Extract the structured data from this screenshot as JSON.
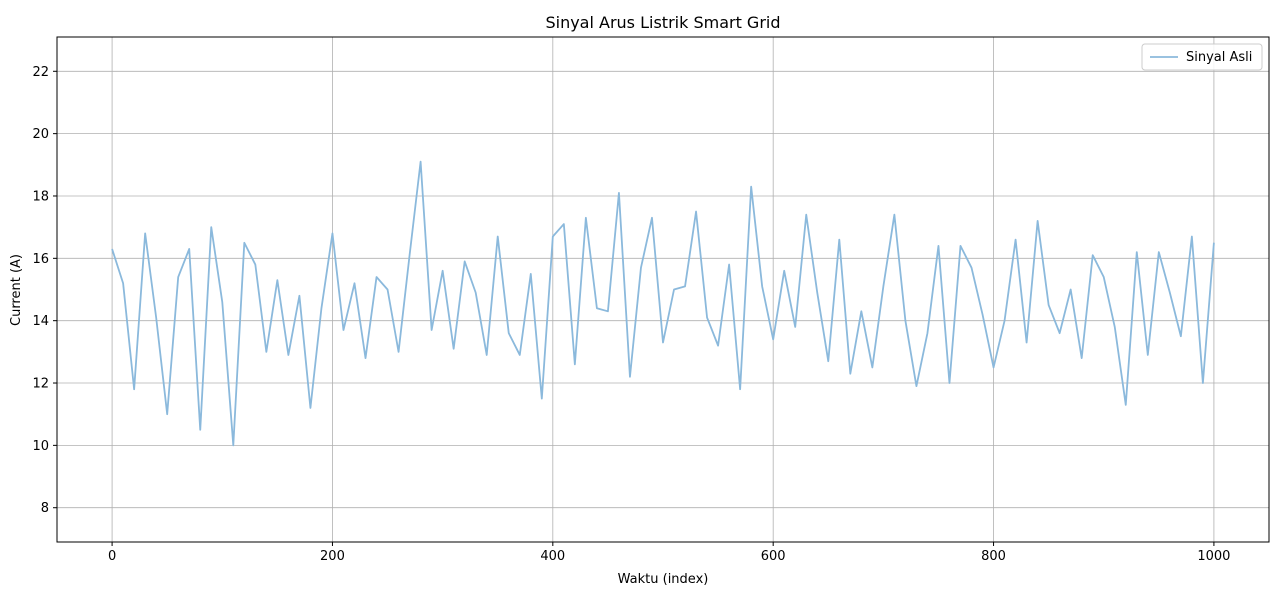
{
  "chart_data": {
    "type": "line",
    "title": "Sinyal Arus Listrik Smart Grid",
    "xlabel": "Waktu (index)",
    "ylabel": "Current (A)",
    "xlim": [
      -50,
      1050
    ],
    "ylim": [
      6.9,
      23.1
    ],
    "xticks": [
      0,
      200,
      400,
      600,
      800,
      1000
    ],
    "yticks": [
      8,
      10,
      12,
      14,
      16,
      18,
      20,
      22
    ],
    "grid": true,
    "legend": "top-right",
    "colors": {
      "series": "#8bb9dc",
      "axis": "#000000",
      "grid": "#b0b0b0"
    },
    "series": [
      {
        "name": "Sinyal Asli",
        "x_start": 0,
        "x_step": 10,
        "values": [
          16.3,
          15.2,
          11.8,
          16.8,
          14.1,
          11.0,
          15.4,
          16.3,
          10.5,
          17.0,
          14.6,
          10.0,
          16.5,
          15.8,
          13.0,
          15.3,
          12.9,
          14.8,
          11.2,
          14.4,
          16.8,
          13.7,
          15.2,
          12.8,
          15.4,
          15.0,
          13.0,
          16.1,
          19.1,
          13.7,
          15.6,
          13.1,
          15.9,
          14.9,
          12.9,
          16.7,
          13.6,
          12.9,
          15.5,
          11.5,
          16.7,
          17.1,
          12.6,
          17.3,
          14.4,
          14.3,
          18.1,
          12.2,
          15.7,
          17.3,
          13.3,
          15.0,
          15.1,
          17.5,
          14.1,
          13.2,
          15.8,
          11.8,
          18.3,
          15.1,
          13.4,
          15.6,
          13.8,
          17.4,
          14.9,
          12.7,
          16.6,
          12.3,
          14.3,
          12.5,
          15.1,
          17.4,
          14.0,
          11.9,
          13.6,
          16.4,
          12.0,
          16.4,
          15.7,
          14.2,
          12.5,
          14.0,
          16.6,
          13.3,
          17.2,
          14.5,
          13.6,
          15.0,
          12.8,
          16.1,
          15.4,
          13.8,
          11.3,
          16.2,
          12.9,
          16.2,
          14.9,
          13.5,
          16.7,
          12.0,
          16.5
        ]
      }
    ]
  }
}
